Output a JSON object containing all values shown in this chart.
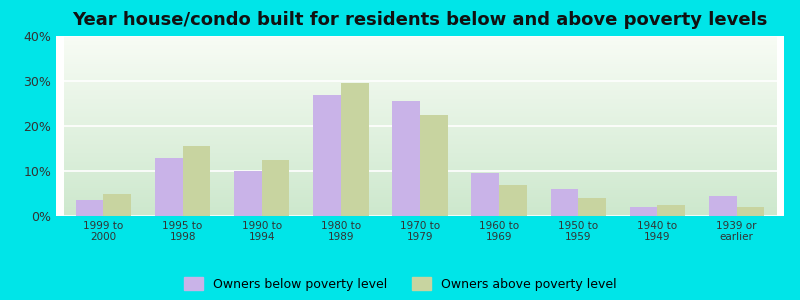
{
  "title": "Year house/condo built for residents below and above poverty levels",
  "categories": [
    "1999 to\n2000",
    "1995 to\n1998",
    "1990 to\n1994",
    "1980 to\n1989",
    "1970 to\n1979",
    "1960 to\n1969",
    "1950 to\n1959",
    "1940 to\n1949",
    "1939 or\nearlier"
  ],
  "below_poverty": [
    3.5,
    13.0,
    10.0,
    27.0,
    25.5,
    9.5,
    6.0,
    2.0,
    4.5
  ],
  "above_poverty": [
    5.0,
    15.5,
    12.5,
    29.5,
    22.5,
    7.0,
    4.0,
    2.5,
    2.0
  ],
  "below_color": "#c9b3e8",
  "above_color": "#c8d4a0",
  "outer_bg": "#00e5e8",
  "ylim": [
    0,
    40
  ],
  "yticks": [
    0,
    10,
    20,
    30,
    40
  ],
  "legend_below": "Owners below poverty level",
  "legend_above": "Owners above poverty level",
  "title_fontsize": 13,
  "bar_width": 0.35
}
